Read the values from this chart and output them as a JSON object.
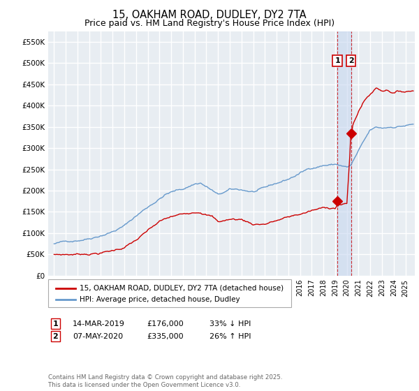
{
  "title": "15, OAKHAM ROAD, DUDLEY, DY2 7TA",
  "subtitle": "Price paid vs. HM Land Registry's House Price Index (HPI)",
  "title_fontsize": 10.5,
  "subtitle_fontsize": 9,
  "ylim": [
    0,
    575000
  ],
  "yticks": [
    0,
    50000,
    100000,
    150000,
    200000,
    250000,
    300000,
    350000,
    400000,
    450000,
    500000,
    550000
  ],
  "ytick_labels": [
    "£0",
    "£50K",
    "£100K",
    "£150K",
    "£200K",
    "£250K",
    "£300K",
    "£350K",
    "£400K",
    "£450K",
    "£500K",
    "£550K"
  ],
  "bg_color": "#e8edf2",
  "grid_color": "#ffffff",
  "line1_color": "#cc0000",
  "line2_color": "#6699cc",
  "legend_label1": "15, OAKHAM ROAD, DUDLEY, DY2 7TA (detached house)",
  "legend_label2": "HPI: Average price, detached house, Dudley",
  "transaction1_date": "14-MAR-2019",
  "transaction1_price": "£176,000",
  "transaction1_hpi": "33% ↓ HPI",
  "transaction2_date": "07-MAY-2020",
  "transaction2_price": "£335,000",
  "transaction2_hpi": "26% ↑ HPI",
  "copyright_text": "Contains HM Land Registry data © Crown copyright and database right 2025.\nThis data is licensed under the Open Government Licence v3.0.",
  "marker1_x": 2019.19,
  "marker1_y": 176000,
  "marker2_x": 2020.35,
  "marker2_y": 335000,
  "vline1_x": 2019.19,
  "vline2_x": 2020.35,
  "xlim_left": 1994.5,
  "xlim_right": 2025.8
}
